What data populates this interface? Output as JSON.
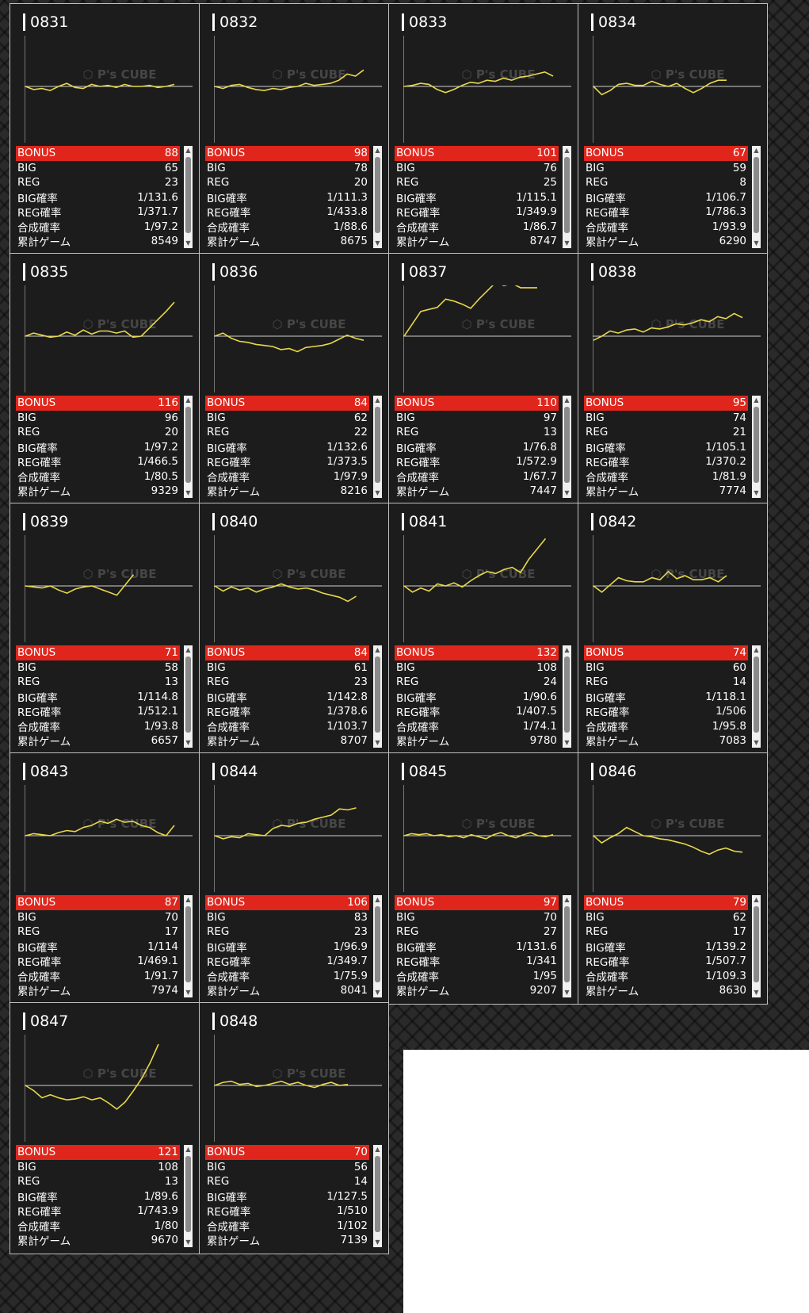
{
  "labels": {
    "bonus": "BONUS",
    "big": "BIG",
    "reg": "REG",
    "big_rate": "BIG確率",
    "reg_rate": "REG確率",
    "total_rate": "合成確率",
    "games": "累計ゲーム",
    "watermark": "P's CUBE"
  },
  "colors": {
    "bonus_bg": "#e0261c",
    "graph_line": "#e8d84a",
    "card_bg": "#1c1c1c"
  },
  "machines": [
    {
      "id": "0831",
      "bonus": "88",
      "big": "65",
      "reg": "23",
      "big_rate": "1/131.6",
      "reg_rate": "1/371.7",
      "total_rate": "1/97.2",
      "games": "8549",
      "graph": [
        0,
        -3,
        -2,
        -4,
        0,
        3,
        -1,
        -2,
        2,
        0,
        1,
        -1,
        2,
        0,
        0,
        1,
        -1,
        0,
        2
      ]
    },
    {
      "id": "0832",
      "bonus": "98",
      "big": "78",
      "reg": "20",
      "big_rate": "1/111.3",
      "reg_rate": "1/433.8",
      "total_rate": "1/88.6",
      "games": "8675",
      "graph": [
        0,
        -2,
        1,
        2,
        -1,
        -3,
        -4,
        -2,
        -3,
        -1,
        0,
        3,
        1,
        2,
        3,
        6,
        12,
        10,
        16
      ]
    },
    {
      "id": "0833",
      "bonus": "101",
      "big": "76",
      "reg": "25",
      "big_rate": "1/115.1",
      "reg_rate": "1/349.9",
      "total_rate": "1/86.7",
      "games": "8747",
      "graph": [
        0,
        1,
        3,
        2,
        -3,
        -6,
        -3,
        1,
        4,
        3,
        6,
        5,
        8,
        6,
        9,
        10,
        12,
        14,
        10
      ]
    },
    {
      "id": "0834",
      "bonus": "67",
      "big": "59",
      "reg": "8",
      "big_rate": "1/106.7",
      "reg_rate": "1/786.3",
      "total_rate": "1/93.9",
      "games": "6290",
      "graph": [
        0,
        -8,
        -4,
        2,
        3,
        1,
        1,
        5,
        2,
        0,
        3,
        -2,
        -6,
        -2,
        3,
        6,
        6
      ]
    },
    {
      "id": "0835",
      "bonus": "116",
      "big": "96",
      "reg": "20",
      "big_rate": "1/97.2",
      "reg_rate": "1/466.5",
      "total_rate": "1/80.5",
      "games": "9329",
      "graph": [
        0,
        3,
        1,
        -1,
        0,
        4,
        1,
        6,
        2,
        5,
        5,
        3,
        5,
        -1,
        0,
        8,
        16,
        24,
        33
      ]
    },
    {
      "id": "0836",
      "bonus": "84",
      "big": "62",
      "reg": "22",
      "big_rate": "1/132.6",
      "reg_rate": "1/373.5",
      "total_rate": "1/97.9",
      "games": "8216",
      "graph": [
        0,
        3,
        -2,
        -5,
        -6,
        -8,
        -9,
        -10,
        -13,
        -12,
        -15,
        -11,
        -10,
        -9,
        -7,
        -3,
        1,
        -2,
        -4
      ]
    },
    {
      "id": "0837",
      "bonus": "110",
      "big": "97",
      "reg": "13",
      "big_rate": "1/76.8",
      "reg_rate": "1/572.9",
      "total_rate": "1/67.7",
      "games": "7447",
      "graph": [
        0,
        12,
        24,
        26,
        28,
        36,
        34,
        31,
        27,
        36,
        44,
        52,
        49,
        51,
        47,
        47,
        47
      ]
    },
    {
      "id": "0838",
      "bonus": "95",
      "big": "74",
      "reg": "21",
      "big_rate": "1/105.1",
      "reg_rate": "1/370.2",
      "total_rate": "1/81.9",
      "games": "7774",
      "graph": [
        -4,
        0,
        5,
        3,
        6,
        7,
        4,
        8,
        7,
        9,
        12,
        11,
        13,
        16,
        14,
        19,
        17,
        22,
        18
      ]
    },
    {
      "id": "0839",
      "bonus": "71",
      "big": "58",
      "reg": "13",
      "big_rate": "1/114.8",
      "reg_rate": "1/512.1",
      "total_rate": "1/93.8",
      "games": "6657",
      "graph": [
        0,
        -1,
        -2,
        0,
        -4,
        -7,
        -3,
        -1,
        0,
        -3,
        -6,
        -9,
        1,
        11
      ]
    },
    {
      "id": "0840",
      "bonus": "84",
      "big": "61",
      "reg": "23",
      "big_rate": "1/142.8",
      "reg_rate": "1/378.6",
      "total_rate": "1/103.7",
      "games": "8707",
      "graph": [
        0,
        -5,
        -1,
        -4,
        -2,
        -6,
        -3,
        -1,
        2,
        -1,
        -3,
        -2,
        -4,
        -7,
        -9,
        -11,
        -15,
        -10
      ]
    },
    {
      "id": "0841",
      "bonus": "132",
      "big": "108",
      "reg": "24",
      "big_rate": "1/90.6",
      "reg_rate": "1/407.5",
      "total_rate": "1/74.1",
      "games": "9780",
      "graph": [
        0,
        -6,
        -2,
        -5,
        2,
        0,
        3,
        -1,
        5,
        10,
        14,
        12,
        16,
        18,
        13,
        26,
        36,
        46
      ]
    },
    {
      "id": "0842",
      "bonus": "74",
      "big": "60",
      "reg": "14",
      "big_rate": "1/118.1",
      "reg_rate": "1/506",
      "total_rate": "1/95.8",
      "games": "7083",
      "graph": [
        0,
        -6,
        1,
        8,
        5,
        4,
        4,
        8,
        6,
        14,
        7,
        10,
        6,
        6,
        8,
        4,
        10
      ]
    },
    {
      "id": "0843",
      "bonus": "87",
      "big": "70",
      "reg": "17",
      "big_rate": "1/114",
      "reg_rate": "1/469.1",
      "total_rate": "1/91.7",
      "games": "7974",
      "graph": [
        0,
        2,
        1,
        0,
        3,
        5,
        4,
        8,
        10,
        14,
        12,
        16,
        13,
        14,
        10,
        8,
        3,
        0,
        10
      ]
    },
    {
      "id": "0844",
      "bonus": "106",
      "big": "83",
      "reg": "23",
      "big_rate": "1/96.9",
      "reg_rate": "1/349.7",
      "total_rate": "1/75.9",
      "games": "8041",
      "graph": [
        0,
        -3,
        -1,
        -2,
        2,
        1,
        0,
        7,
        10,
        9,
        12,
        13,
        16,
        18,
        20,
        26,
        25,
        27
      ]
    },
    {
      "id": "0845",
      "bonus": "97",
      "big": "70",
      "reg": "27",
      "big_rate": "1/131.6",
      "reg_rate": "1/341",
      "total_rate": "1/95",
      "games": "9207",
      "graph": [
        0,
        2,
        1,
        2,
        0,
        1,
        -1,
        0,
        -2,
        1,
        -1,
        -3,
        1,
        3,
        0,
        -2,
        1,
        3,
        0,
        -1,
        1
      ]
    },
    {
      "id": "0846",
      "bonus": "79",
      "big": "62",
      "reg": "17",
      "big_rate": "1/139.2",
      "reg_rate": "1/507.7",
      "total_rate": "1/109.3",
      "games": "8630",
      "graph": [
        0,
        -7,
        -2,
        2,
        8,
        4,
        0,
        -1,
        -3,
        -4,
        -6,
        -8,
        -11,
        -15,
        -18,
        -14,
        -12,
        -15,
        -16
      ]
    },
    {
      "id": "0847",
      "bonus": "121",
      "big": "108",
      "reg": "13",
      "big_rate": "1/89.6",
      "reg_rate": "1/743.9",
      "total_rate": "1/80",
      "games": "9670",
      "graph": [
        0,
        -5,
        -12,
        -9,
        -12,
        -14,
        -13,
        -11,
        -14,
        -12,
        -17,
        -23,
        -16,
        -5,
        7,
        22,
        40
      ]
    },
    {
      "id": "0848",
      "bonus": "70",
      "big": "56",
      "reg": "14",
      "big_rate": "1/127.5",
      "reg_rate": "1/510",
      "total_rate": "1/102",
      "games": "7139",
      "graph": [
        0,
        3,
        4,
        1,
        2,
        -1,
        0,
        2,
        4,
        1,
        3,
        0,
        -2,
        1,
        3,
        0,
        1
      ]
    }
  ]
}
